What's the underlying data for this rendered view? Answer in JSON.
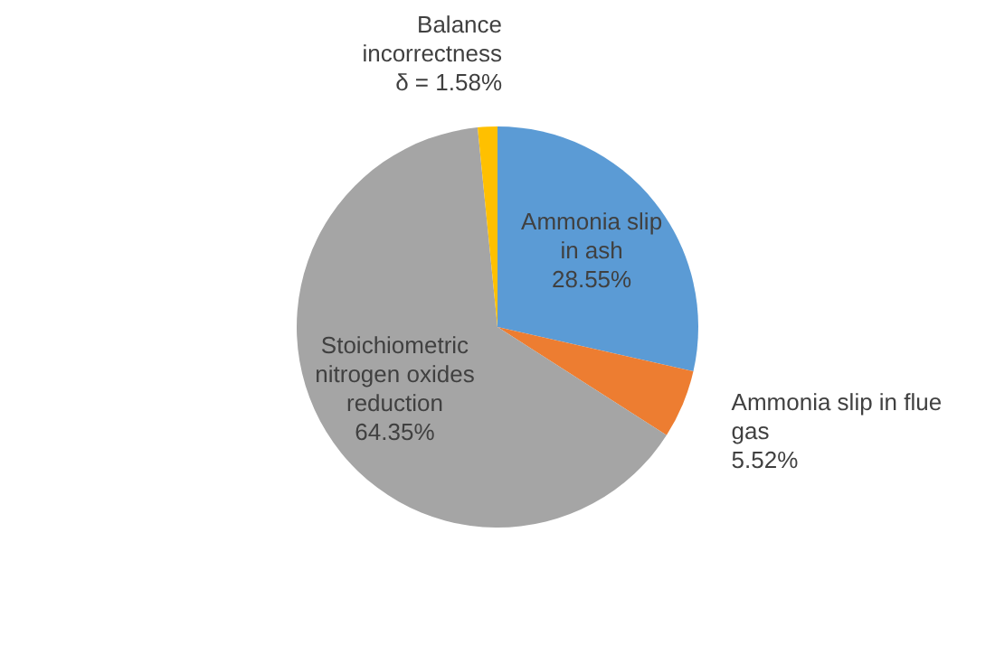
{
  "chart_data": {
    "type": "pie",
    "categories": [
      "Ammonia slip in ash",
      "Ammonia slip in flue gas",
      "Stoichiometric nitrogen oxides reduction",
      "Balance incorrectness"
    ],
    "values": [
      28.55,
      5.52,
      64.35,
      1.58
    ],
    "colors": [
      "#5b9bd5",
      "#ed7d31",
      "#a5a5a5",
      "#ffc000"
    ],
    "value_labels": [
      "28.55%",
      "5.52%",
      "64.35%",
      "δ = 1.58%"
    ],
    "legend": false
  }
}
